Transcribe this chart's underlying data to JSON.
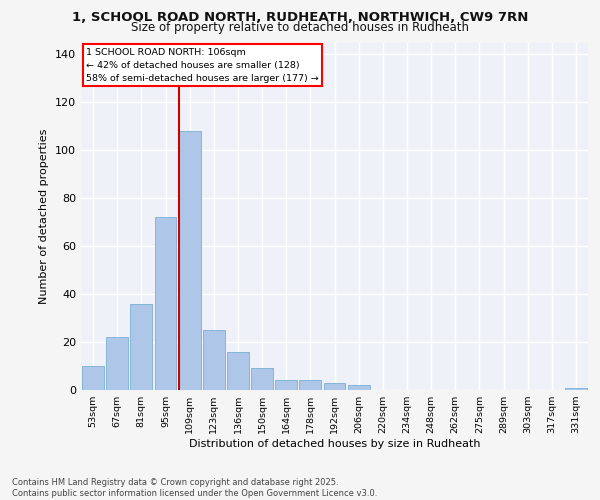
{
  "title_line1": "1, SCHOOL ROAD NORTH, RUDHEATH, NORTHWICH, CW9 7RN",
  "title_line2": "Size of property relative to detached houses in Rudheath",
  "xlabel": "Distribution of detached houses by size in Rudheath",
  "ylabel": "Number of detached properties",
  "categories": [
    "53sqm",
    "67sqm",
    "81sqm",
    "95sqm",
    "109sqm",
    "123sqm",
    "136sqm",
    "150sqm",
    "164sqm",
    "178sqm",
    "192sqm",
    "206sqm",
    "220sqm",
    "234sqm",
    "248sqm",
    "262sqm",
    "275sqm",
    "289sqm",
    "303sqm",
    "317sqm",
    "331sqm"
  ],
  "values": [
    10,
    22,
    36,
    72,
    108,
    25,
    16,
    9,
    4,
    4,
    3,
    2,
    0,
    0,
    0,
    0,
    0,
    0,
    0,
    0,
    1
  ],
  "bar_color": "#aec6e8",
  "bar_edge_color": "#7bafd4",
  "property_label": "1 SCHOOL ROAD NORTH: 106sqm",
  "annotation_line2": "← 42% of detached houses are smaller (128)",
  "annotation_line3": "58% of semi-detached houses are larger (177) →",
  "vline_x_index": 4,
  "vline_color": "#cc0000",
  "ylim": [
    0,
    145
  ],
  "yticks": [
    0,
    20,
    40,
    60,
    80,
    100,
    120,
    140
  ],
  "background_color": "#eef2f8",
  "grid_color": "#ffffff",
  "fig_background": "#f5f5f5",
  "footer_line1": "Contains HM Land Registry data © Crown copyright and database right 2025.",
  "footer_line2": "Contains public sector information licensed under the Open Government Licence v3.0."
}
